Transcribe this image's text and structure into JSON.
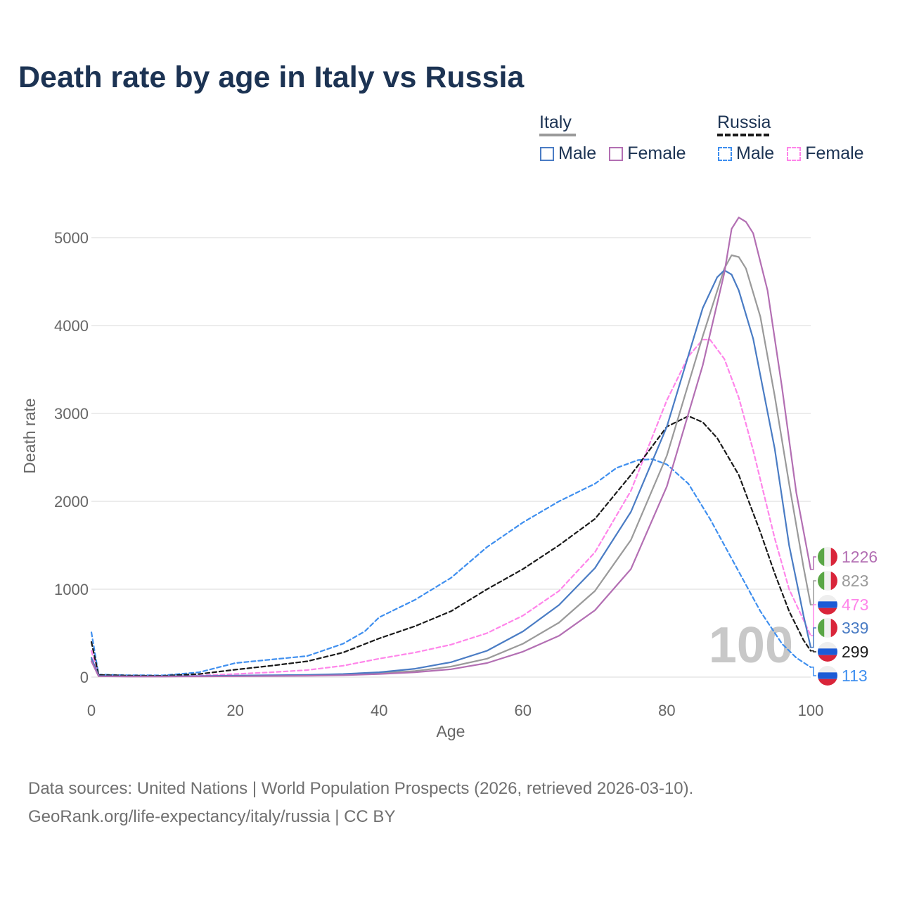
{
  "title": "Death rate by age in Italy vs Russia",
  "legend": {
    "italy": {
      "label": "Italy",
      "male": "Male",
      "female": "Female"
    },
    "russia": {
      "label": "Russia",
      "male": "Male",
      "female": "Female"
    }
  },
  "footer": {
    "line1": "Data sources: United Nations | World Population Prospects (2026, retrieved 2026-03-10).",
    "line2": "GeoRank.org/life-expectancy/italy/russia | CC BY"
  },
  "watermark": "100",
  "colors": {
    "italy_total": "#9a9a9a",
    "italy_male": "#4a7cc4",
    "italy_female": "#b36fb3",
    "russia_total": "#1a1a1a",
    "russia_male": "#3f8fef",
    "russia_female": "#ff85ea",
    "grid": "#e6e6e6",
    "axis_text": "#666666"
  },
  "end_labels": [
    {
      "text": "1226",
      "country": "italy",
      "series": "italy_female",
      "value": 1226
    },
    {
      "text": "823",
      "country": "italy",
      "series": "italy_total",
      "value": 823
    },
    {
      "text": "473",
      "country": "russia",
      "series": "russia_female",
      "value": 473
    },
    {
      "text": "339",
      "country": "italy",
      "series": "italy_male",
      "value": 339
    },
    {
      "text": "299",
      "country": "russia",
      "series": "russia_total",
      "value": 299
    },
    {
      "text": "113",
      "country": "russia",
      "series": "russia_male",
      "value": 113
    }
  ],
  "chart_data": {
    "type": "line",
    "title": "Death rate by age in Italy vs Russia",
    "xlabel": "Age",
    "ylabel": "Death rate",
    "xlim": [
      0,
      100
    ],
    "ylim": [
      0,
      5300
    ],
    "xticks": [
      0,
      20,
      40,
      60,
      80,
      100
    ],
    "yticks": [
      0,
      1000,
      2000,
      3000,
      4000,
      5000
    ],
    "grid": true,
    "series": [
      {
        "name": "Italy",
        "key": "italy_total",
        "dashed": false,
        "points": [
          [
            0,
            200
          ],
          [
            1,
            12
          ],
          [
            5,
            8
          ],
          [
            10,
            8
          ],
          [
            15,
            10
          ],
          [
            20,
            14
          ],
          [
            25,
            17
          ],
          [
            30,
            20
          ],
          [
            35,
            28
          ],
          [
            40,
            45
          ],
          [
            45,
            70
          ],
          [
            50,
            120
          ],
          [
            55,
            210
          ],
          [
            60,
            380
          ],
          [
            65,
            620
          ],
          [
            70,
            980
          ],
          [
            75,
            1560
          ],
          [
            80,
            2520
          ],
          [
            85,
            3880
          ],
          [
            88,
            4650
          ],
          [
            89,
            4800
          ],
          [
            90,
            4780
          ],
          [
            91,
            4650
          ],
          [
            93,
            4100
          ],
          [
            95,
            3200
          ],
          [
            97,
            2200
          ],
          [
            99,
            1250
          ],
          [
            100,
            823
          ]
        ]
      },
      {
        "name": "Italy Male",
        "key": "italy_male",
        "dashed": false,
        "points": [
          [
            0,
            220
          ],
          [
            1,
            14
          ],
          [
            5,
            9
          ],
          [
            10,
            9
          ],
          [
            15,
            12
          ],
          [
            20,
            18
          ],
          [
            25,
            22
          ],
          [
            30,
            25
          ],
          [
            35,
            35
          ],
          [
            40,
            55
          ],
          [
            45,
            95
          ],
          [
            50,
            170
          ],
          [
            55,
            300
          ],
          [
            60,
            520
          ],
          [
            65,
            820
          ],
          [
            70,
            1240
          ],
          [
            75,
            1880
          ],
          [
            80,
            2850
          ],
          [
            85,
            4200
          ],
          [
            87,
            4550
          ],
          [
            88,
            4630
          ],
          [
            89,
            4580
          ],
          [
            90,
            4400
          ],
          [
            92,
            3850
          ],
          [
            95,
            2600
          ],
          [
            97,
            1500
          ],
          [
            99,
            700
          ],
          [
            100,
            339
          ]
        ]
      },
      {
        "name": "Italy Female",
        "key": "italy_female",
        "dashed": false,
        "points": [
          [
            0,
            180
          ],
          [
            1,
            10
          ],
          [
            5,
            7
          ],
          [
            10,
            7
          ],
          [
            15,
            8
          ],
          [
            20,
            10
          ],
          [
            25,
            12
          ],
          [
            30,
            15
          ],
          [
            35,
            22
          ],
          [
            40,
            35
          ],
          [
            45,
            55
          ],
          [
            50,
            90
          ],
          [
            55,
            160
          ],
          [
            60,
            290
          ],
          [
            65,
            470
          ],
          [
            70,
            760
          ],
          [
            75,
            1230
          ],
          [
            80,
            2170
          ],
          [
            85,
            3550
          ],
          [
            88,
            4600
          ],
          [
            89,
            5100
          ],
          [
            90,
            5230
          ],
          [
            91,
            5180
          ],
          [
            92,
            5050
          ],
          [
            94,
            4400
          ],
          [
            96,
            3300
          ],
          [
            98,
            2100
          ],
          [
            100,
            1226
          ]
        ]
      },
      {
        "name": "Russia",
        "key": "russia_total",
        "dashed": true,
        "points": [
          [
            0,
            400
          ],
          [
            1,
            25
          ],
          [
            5,
            18
          ],
          [
            10,
            15
          ],
          [
            15,
            35
          ],
          [
            20,
            85
          ],
          [
            25,
            130
          ],
          [
            30,
            180
          ],
          [
            35,
            280
          ],
          [
            40,
            440
          ],
          [
            45,
            580
          ],
          [
            50,
            750
          ],
          [
            55,
            1000
          ],
          [
            60,
            1230
          ],
          [
            65,
            1500
          ],
          [
            70,
            1800
          ],
          [
            75,
            2300
          ],
          [
            80,
            2850
          ],
          [
            83,
            2970
          ],
          [
            85,
            2900
          ],
          [
            87,
            2720
          ],
          [
            90,
            2300
          ],
          [
            93,
            1650
          ],
          [
            95,
            1180
          ],
          [
            97,
            750
          ],
          [
            99,
            420
          ],
          [
            100,
            299
          ]
        ]
      },
      {
        "name": "Russia Male",
        "key": "russia_male",
        "dashed": true,
        "points": [
          [
            0,
            510
          ],
          [
            1,
            30
          ],
          [
            5,
            22
          ],
          [
            10,
            20
          ],
          [
            15,
            55
          ],
          [
            20,
            160
          ],
          [
            25,
            200
          ],
          [
            30,
            240
          ],
          [
            35,
            380
          ],
          [
            38,
            520
          ],
          [
            40,
            680
          ],
          [
            45,
            880
          ],
          [
            50,
            1130
          ],
          [
            55,
            1480
          ],
          [
            60,
            1760
          ],
          [
            65,
            2000
          ],
          [
            70,
            2200
          ],
          [
            73,
            2380
          ],
          [
            76,
            2470
          ],
          [
            78,
            2480
          ],
          [
            80,
            2420
          ],
          [
            83,
            2200
          ],
          [
            86,
            1800
          ],
          [
            90,
            1200
          ],
          [
            93,
            750
          ],
          [
            96,
            380
          ],
          [
            98,
            220
          ],
          [
            100,
            113
          ]
        ]
      },
      {
        "name": "Russia Female",
        "key": "russia_female",
        "dashed": true,
        "points": [
          [
            0,
            300
          ],
          [
            1,
            18
          ],
          [
            5,
            12
          ],
          [
            10,
            10
          ],
          [
            15,
            18
          ],
          [
            20,
            35
          ],
          [
            25,
            55
          ],
          [
            30,
            80
          ],
          [
            35,
            130
          ],
          [
            40,
            210
          ],
          [
            45,
            280
          ],
          [
            50,
            370
          ],
          [
            55,
            500
          ],
          [
            60,
            700
          ],
          [
            65,
            980
          ],
          [
            70,
            1420
          ],
          [
            75,
            2120
          ],
          [
            80,
            3150
          ],
          [
            83,
            3650
          ],
          [
            85,
            3840
          ],
          [
            86,
            3840
          ],
          [
            88,
            3620
          ],
          [
            90,
            3180
          ],
          [
            92,
            2580
          ],
          [
            95,
            1580
          ],
          [
            97,
            1000
          ],
          [
            99,
            650
          ],
          [
            100,
            473
          ]
        ]
      }
    ]
  }
}
